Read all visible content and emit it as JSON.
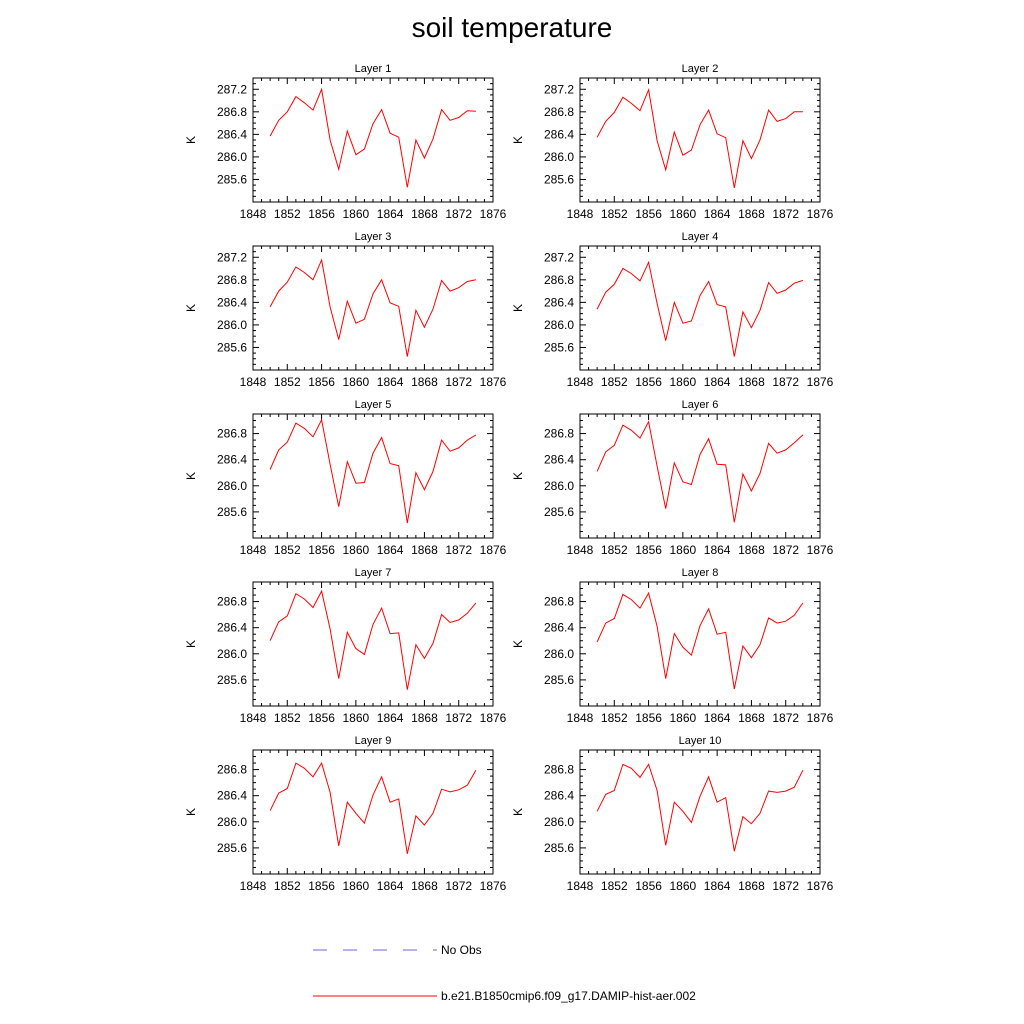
{
  "title": "soil temperature",
  "legend": [
    {
      "label": "No Obs",
      "color": "#6a6ad8",
      "dash": true
    },
    {
      "label": "b.e21.B1850cmip6.f09_g17.DAMIP-hist-aer.002",
      "color": "#ff0000",
      "dash": false
    }
  ],
  "colors": {
    "series": "#ff0000",
    "axes": "#000000"
  },
  "chart_data": [
    {
      "type": "line",
      "title": "Layer 1",
      "ylabel": "K",
      "xlim": [
        1848,
        1876
      ],
      "ylim": [
        285.2,
        287.4
      ],
      "xticks": [
        1848,
        1852,
        1856,
        1860,
        1864,
        1868,
        1872,
        1876
      ],
      "yticks": [
        285.6,
        286.0,
        286.4,
        286.8,
        287.2
      ],
      "series": [
        {
          "x": [
            1850,
            1851,
            1852,
            1853,
            1854,
            1855,
            1856,
            1857,
            1858,
            1859,
            1860,
            1861,
            1862,
            1863,
            1864,
            1865,
            1866,
            1867,
            1868,
            1869,
            1870,
            1871,
            1872,
            1873,
            1874
          ],
          "values": [
            286.37,
            286.65,
            286.8,
            287.07,
            286.96,
            286.83,
            287.2,
            286.3,
            285.78,
            286.46,
            286.04,
            286.14,
            286.59,
            286.84,
            286.42,
            286.35,
            285.46,
            286.3,
            285.98,
            286.32,
            286.84,
            286.65,
            286.7,
            286.82,
            286.81
          ]
        }
      ]
    },
    {
      "type": "line",
      "title": "Layer 2",
      "ylabel": "K",
      "xlim": [
        1848,
        1876
      ],
      "ylim": [
        285.2,
        287.4
      ],
      "xticks": [
        1848,
        1852,
        1856,
        1860,
        1864,
        1868,
        1872,
        1876
      ],
      "yticks": [
        285.6,
        286.0,
        286.4,
        286.8,
        287.2
      ],
      "series": [
        {
          "x": [
            1850,
            1851,
            1852,
            1853,
            1854,
            1855,
            1856,
            1857,
            1858,
            1859,
            1860,
            1861,
            1862,
            1863,
            1864,
            1865,
            1866,
            1867,
            1868,
            1869,
            1870,
            1871,
            1872,
            1873,
            1874
          ],
          "values": [
            286.35,
            286.63,
            286.79,
            287.06,
            286.95,
            286.82,
            287.19,
            286.29,
            285.77,
            286.44,
            286.03,
            286.12,
            286.57,
            286.83,
            286.41,
            286.34,
            285.45,
            286.29,
            285.97,
            286.3,
            286.83,
            286.63,
            286.68,
            286.8,
            286.8
          ]
        }
      ]
    },
    {
      "type": "line",
      "title": "Layer 3",
      "ylabel": "K",
      "xlim": [
        1848,
        1876
      ],
      "ylim": [
        285.2,
        287.4
      ],
      "xticks": [
        1848,
        1852,
        1856,
        1860,
        1864,
        1868,
        1872,
        1876
      ],
      "yticks": [
        285.6,
        286.0,
        286.4,
        286.8,
        287.2
      ],
      "series": [
        {
          "x": [
            1850,
            1851,
            1852,
            1853,
            1854,
            1855,
            1856,
            1857,
            1858,
            1859,
            1860,
            1861,
            1862,
            1863,
            1864,
            1865,
            1866,
            1867,
            1868,
            1869,
            1870,
            1871,
            1872,
            1873,
            1874
          ],
          "values": [
            286.32,
            286.6,
            286.76,
            287.03,
            286.93,
            286.8,
            287.15,
            286.32,
            285.74,
            286.42,
            286.03,
            286.1,
            286.55,
            286.8,
            286.39,
            286.33,
            285.44,
            286.26,
            285.96,
            286.28,
            286.79,
            286.6,
            286.66,
            286.77,
            286.8
          ]
        }
      ]
    },
    {
      "type": "line",
      "title": "Layer 4",
      "ylabel": "K",
      "xlim": [
        1848,
        1876
      ],
      "ylim": [
        285.2,
        287.4
      ],
      "xticks": [
        1848,
        1852,
        1856,
        1860,
        1864,
        1868,
        1872,
        1876
      ],
      "yticks": [
        285.6,
        286.0,
        286.4,
        286.8,
        287.2
      ],
      "series": [
        {
          "x": [
            1850,
            1851,
            1852,
            1853,
            1854,
            1855,
            1856,
            1857,
            1858,
            1859,
            1860,
            1861,
            1862,
            1863,
            1864,
            1865,
            1866,
            1867,
            1868,
            1869,
            1870,
            1871,
            1872,
            1873,
            1874
          ],
          "values": [
            286.28,
            286.58,
            286.72,
            287.0,
            286.91,
            286.78,
            287.11,
            286.38,
            285.72,
            286.4,
            286.03,
            286.07,
            286.52,
            286.77,
            286.36,
            286.32,
            285.44,
            286.23,
            285.95,
            286.26,
            286.75,
            286.56,
            286.62,
            286.74,
            286.79
          ]
        }
      ]
    },
    {
      "type": "line",
      "title": "Layer 5",
      "ylabel": "K",
      "xlim": [
        1848,
        1876
      ],
      "ylim": [
        285.2,
        287.1
      ],
      "xticks": [
        1848,
        1852,
        1856,
        1860,
        1864,
        1868,
        1872,
        1876
      ],
      "yticks": [
        285.6,
        286.0,
        286.4,
        286.8
      ],
      "series": [
        {
          "x": [
            1850,
            1851,
            1852,
            1853,
            1854,
            1855,
            1856,
            1857,
            1858,
            1859,
            1860,
            1861,
            1862,
            1863,
            1864,
            1865,
            1866,
            1867,
            1868,
            1869,
            1870,
            1871,
            1872,
            1873,
            1874
          ],
          "values": [
            286.25,
            286.55,
            286.67,
            286.96,
            286.88,
            286.75,
            287.01,
            286.33,
            285.68,
            286.37,
            286.04,
            286.05,
            286.5,
            286.74,
            286.34,
            286.31,
            285.43,
            286.2,
            285.94,
            286.22,
            286.7,
            286.53,
            286.58,
            286.7,
            286.78
          ]
        }
      ]
    },
    {
      "type": "line",
      "title": "Layer 6",
      "ylabel": "K",
      "xlim": [
        1848,
        1876
      ],
      "ylim": [
        285.2,
        287.1
      ],
      "xticks": [
        1848,
        1852,
        1856,
        1860,
        1864,
        1868,
        1872,
        1876
      ],
      "yticks": [
        285.6,
        286.0,
        286.4,
        286.8
      ],
      "series": [
        {
          "x": [
            1850,
            1851,
            1852,
            1853,
            1854,
            1855,
            1856,
            1857,
            1858,
            1859,
            1860,
            1861,
            1862,
            1863,
            1864,
            1865,
            1866,
            1867,
            1868,
            1869,
            1870,
            1871,
            1872,
            1873,
            1874
          ],
          "values": [
            286.22,
            286.52,
            286.62,
            286.93,
            286.85,
            286.73,
            286.98,
            286.3,
            285.65,
            286.35,
            286.06,
            286.02,
            286.48,
            286.72,
            286.33,
            286.32,
            285.44,
            286.18,
            285.92,
            286.19,
            286.65,
            286.5,
            286.55,
            286.66,
            286.78
          ]
        }
      ]
    },
    {
      "type": "line",
      "title": "Layer 7",
      "ylabel": "K",
      "xlim": [
        1848,
        1876
      ],
      "ylim": [
        285.2,
        287.1
      ],
      "xticks": [
        1848,
        1852,
        1856,
        1860,
        1864,
        1868,
        1872,
        1876
      ],
      "yticks": [
        285.6,
        286.0,
        286.4,
        286.8
      ],
      "series": [
        {
          "x": [
            1850,
            1851,
            1852,
            1853,
            1854,
            1855,
            1856,
            1857,
            1858,
            1859,
            1860,
            1861,
            1862,
            1863,
            1864,
            1865,
            1866,
            1867,
            1868,
            1869,
            1870,
            1871,
            1872,
            1873,
            1874
          ],
          "values": [
            286.2,
            286.49,
            286.58,
            286.92,
            286.84,
            286.71,
            286.96,
            286.38,
            285.62,
            286.33,
            286.08,
            285.99,
            286.45,
            286.7,
            286.31,
            286.32,
            285.45,
            286.14,
            285.93,
            286.16,
            286.6,
            286.48,
            286.52,
            286.62,
            286.78
          ]
        }
      ]
    },
    {
      "type": "line",
      "title": "Layer 8",
      "ylabel": "K",
      "xlim": [
        1848,
        1876
      ],
      "ylim": [
        285.2,
        287.1
      ],
      "xticks": [
        1848,
        1852,
        1856,
        1860,
        1864,
        1868,
        1872,
        1876
      ],
      "yticks": [
        285.6,
        286.0,
        286.4,
        286.8
      ],
      "series": [
        {
          "x": [
            1850,
            1851,
            1852,
            1853,
            1854,
            1855,
            1856,
            1857,
            1858,
            1859,
            1860,
            1861,
            1862,
            1863,
            1864,
            1865,
            1866,
            1867,
            1868,
            1869,
            1870,
            1871,
            1872,
            1873,
            1874
          ],
          "values": [
            286.18,
            286.47,
            286.54,
            286.91,
            286.83,
            286.7,
            286.93,
            286.42,
            285.62,
            286.31,
            286.1,
            285.98,
            286.43,
            286.69,
            286.3,
            286.33,
            285.46,
            286.12,
            285.94,
            286.14,
            286.55,
            286.47,
            286.5,
            286.59,
            286.78
          ]
        }
      ]
    },
    {
      "type": "line",
      "title": "Layer 9",
      "ylabel": "K",
      "xlim": [
        1848,
        1876
      ],
      "ylim": [
        285.2,
        287.1
      ],
      "xticks": [
        1848,
        1852,
        1856,
        1860,
        1864,
        1868,
        1872,
        1876
      ],
      "yticks": [
        285.6,
        286.0,
        286.4,
        286.8
      ],
      "series": [
        {
          "x": [
            1850,
            1851,
            1852,
            1853,
            1854,
            1855,
            1856,
            1857,
            1858,
            1859,
            1860,
            1861,
            1862,
            1863,
            1864,
            1865,
            1866,
            1867,
            1868,
            1869,
            1870,
            1871,
            1872,
            1873,
            1874
          ],
          "values": [
            286.17,
            286.44,
            286.51,
            286.9,
            286.82,
            286.69,
            286.9,
            286.45,
            285.63,
            286.3,
            286.13,
            285.98,
            286.41,
            286.69,
            286.3,
            286.35,
            285.51,
            286.09,
            285.95,
            286.13,
            286.5,
            286.46,
            286.49,
            286.56,
            286.79
          ]
        }
      ]
    },
    {
      "type": "line",
      "title": "Layer 10",
      "ylabel": "K",
      "xlim": [
        1848,
        1876
      ],
      "ylim": [
        285.2,
        287.1
      ],
      "xticks": [
        1848,
        1852,
        1856,
        1860,
        1864,
        1868,
        1872,
        1876
      ],
      "yticks": [
        285.6,
        286.0,
        286.4,
        286.8
      ],
      "series": [
        {
          "x": [
            1850,
            1851,
            1852,
            1853,
            1854,
            1855,
            1856,
            1857,
            1858,
            1859,
            1860,
            1861,
            1862,
            1863,
            1864,
            1865,
            1866,
            1867,
            1868,
            1869,
            1870,
            1871,
            1872,
            1873,
            1874
          ],
          "values": [
            286.16,
            286.42,
            286.48,
            286.88,
            286.82,
            286.68,
            286.88,
            286.48,
            285.64,
            286.3,
            286.16,
            285.99,
            286.39,
            286.69,
            286.3,
            286.37,
            285.55,
            286.08,
            285.97,
            286.13,
            286.47,
            286.45,
            286.47,
            286.53,
            286.79
          ]
        }
      ]
    }
  ]
}
